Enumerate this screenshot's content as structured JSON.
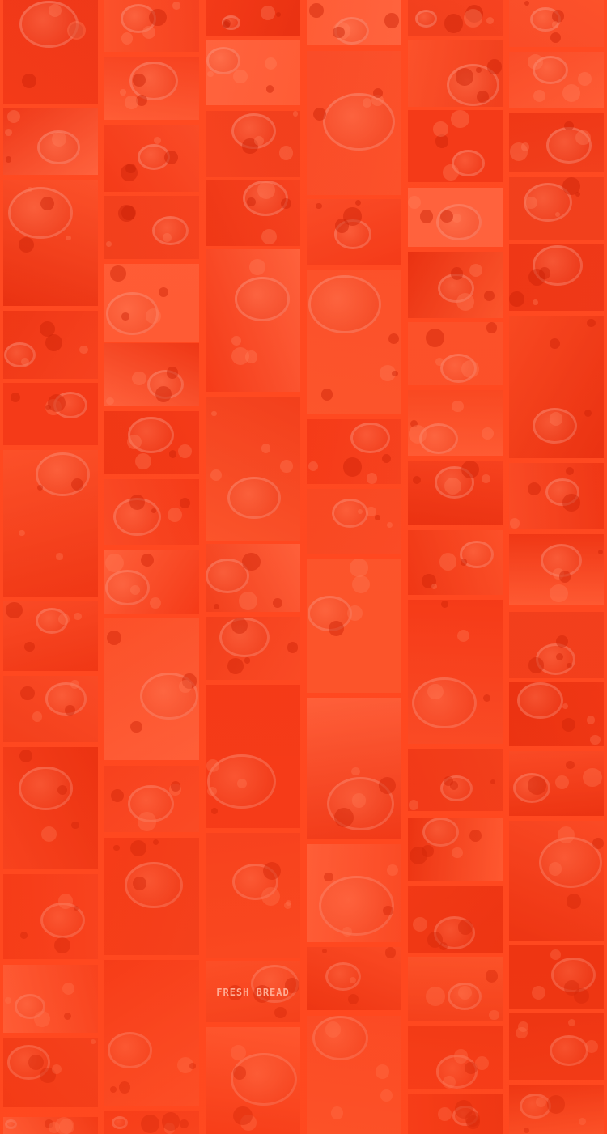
{
  "background_color": "#ff4a22",
  "tile_palette": [
    "#f0391a",
    "#f64e28",
    "#e83416",
    "#fb5a34",
    "#ff6a44",
    "#ec4020",
    "#f85230",
    "#e02c10",
    "#ff7350",
    "#f34424",
    "#e8361a",
    "#fa6038"
  ],
  "columns": [
    {
      "name": "column-1",
      "tiles": [
        {
          "id": "pancakes-plate-photo"
        },
        {
          "id": "tortilla-flowers-photo"
        },
        {
          "id": "sandwich-board-photo"
        },
        {
          "id": "strawberry-tray-photo"
        },
        {
          "id": "macaron-box-photo"
        },
        {
          "id": "tomato-soup-bowls-photo"
        },
        {
          "id": "dark-table-photo"
        },
        {
          "id": "market-stall-photo"
        },
        {
          "id": "salad-bowls-photo"
        },
        {
          "id": "dessert-plate-photo"
        },
        {
          "id": "cutlery-plate-photo"
        },
        {
          "id": "berries-spread-photo"
        },
        {
          "id": "bottom-dish-photo"
        }
      ]
    },
    {
      "name": "column-2",
      "tiles": [
        {
          "id": "pastry-board-photo"
        },
        {
          "id": "burger-stack-photo"
        },
        {
          "id": "stew-pot-photo"
        },
        {
          "id": "notebook-spoons-photo"
        },
        {
          "id": "grain-bowls-photo"
        },
        {
          "id": "dark-bread-photo"
        },
        {
          "id": "soup-bowl-photo"
        },
        {
          "id": "white-plate-photo"
        },
        {
          "id": "spice-jars-photo"
        },
        {
          "id": "table-setting-photo"
        },
        {
          "id": "porridge-bowl-photo"
        },
        {
          "id": "cake-slice-photo"
        },
        {
          "id": "bowls-overhead-photo"
        },
        {
          "id": "bottom-salad-photo"
        }
      ]
    },
    {
      "name": "column-3",
      "tiles": [
        {
          "id": "cherry-tomatoes-photo"
        },
        {
          "id": "pizza-slice-photo"
        },
        {
          "id": "fruit-basket-photo"
        },
        {
          "id": "noodle-stack-photo"
        },
        {
          "id": "red-apples-photo"
        },
        {
          "id": "kettle-cups-photo"
        },
        {
          "id": "salad-plate-photo"
        },
        {
          "id": "dark-bowl-photo"
        },
        {
          "id": "pasta-plate-photo"
        },
        {
          "id": "chocolate-box-photo"
        },
        {
          "id": "fresh-bread-sign-photo",
          "label": "FRESH BREAD"
        },
        {
          "id": "bagels-tray-photo"
        }
      ]
    },
    {
      "name": "column-4",
      "tiles": [
        {
          "id": "nut-bowl-photo"
        },
        {
          "id": "steak-plate-photo"
        },
        {
          "id": "pumpkin-bowls-photo"
        },
        {
          "id": "bread-greens-photo"
        },
        {
          "id": "soup-tureen-photo"
        },
        {
          "id": "tea-cup-photo"
        },
        {
          "id": "rice-cloth-photo"
        },
        {
          "id": "nut-pile-photo"
        },
        {
          "id": "honey-jar-photo"
        },
        {
          "id": "herb-plate-photo"
        },
        {
          "id": "tomato-pile-photo"
        },
        {
          "id": "toast-plate-photo"
        }
      ]
    },
    {
      "name": "column-5",
      "tiles": [
        {
          "id": "bowl-top-photo"
        },
        {
          "id": "eggs-plates-photo"
        },
        {
          "id": "berries-parchment-photo"
        },
        {
          "id": "city-street-photo"
        },
        {
          "id": "flowers-breakfast-photo"
        },
        {
          "id": "pizza-board-photo"
        },
        {
          "id": "macarons-stack-photo"
        },
        {
          "id": "sandwich-box-photo"
        },
        {
          "id": "tomatoes-closeup-photo"
        },
        {
          "id": "ladle-pan-photo"
        },
        {
          "id": "flatbread-photo"
        },
        {
          "id": "cafe-window-photo"
        },
        {
          "id": "cookie-plate-photo"
        },
        {
          "id": "dark-counter-photo"
        },
        {
          "id": "berry-bowl-photo"
        },
        {
          "id": "bottom-plate-photo"
        }
      ]
    },
    {
      "name": "column-6",
      "tiles": [
        {
          "id": "sushi-plates-photo"
        },
        {
          "id": "tomato-dish-photo"
        },
        {
          "id": "pizza-basil-photo"
        },
        {
          "id": "sausage-tray-photo"
        },
        {
          "id": "dark-bowl-garnish-photo"
        },
        {
          "id": "oranges-dark-photo"
        },
        {
          "id": "fruit-basket-dark-photo"
        },
        {
          "id": "sliders-photo"
        },
        {
          "id": "bakery-shelf-photo"
        },
        {
          "id": "greens-bowl-photo"
        },
        {
          "id": "skewer-plate-photo"
        },
        {
          "id": "flower-berries-photo"
        },
        {
          "id": "red-fruit-photo"
        },
        {
          "id": "blank-counter-photo"
        },
        {
          "id": "bottom-cup-photo"
        }
      ]
    }
  ]
}
